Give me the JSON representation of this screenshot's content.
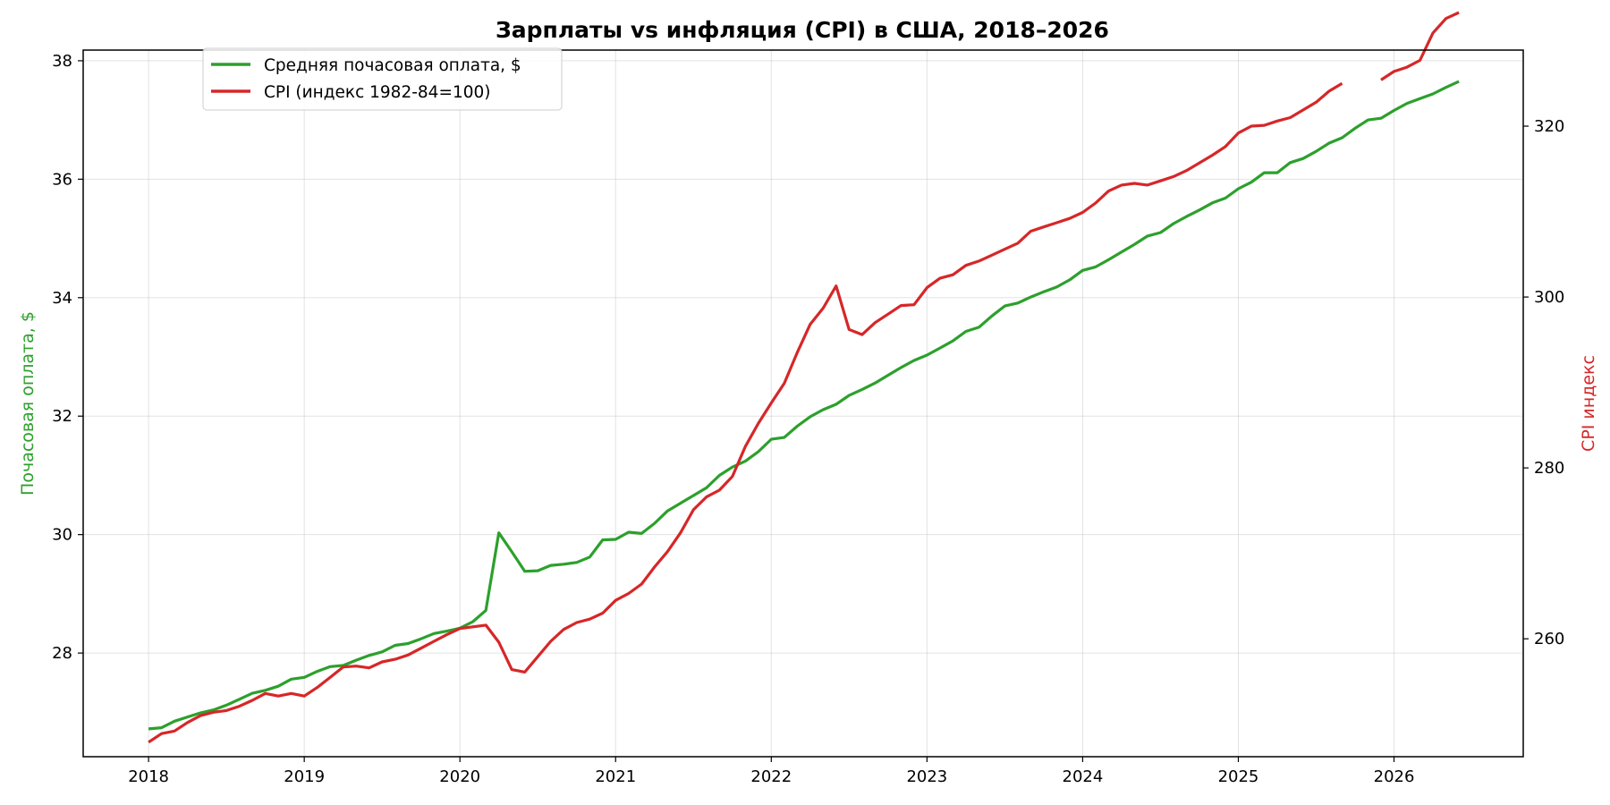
{
  "chart_data": {
    "type": "line",
    "title": "Зарплаты vs инфляция (CPI) в США, 2018–2026",
    "ylabel_left": "Почасовая оплата, $",
    "ylabel_right": "CPI индекс",
    "xlabel": "",
    "x_range": [
      2017.58,
      2026.83
    ],
    "ylim_left": [
      26.25,
      38.18
    ],
    "ylim_right": [
      246.2,
      328.9
    ],
    "x_ticks": [
      "2018",
      "2019",
      "2020",
      "2021",
      "2022",
      "2023",
      "2024",
      "2025",
      "2026"
    ],
    "y_ticks_left": [
      "28",
      "30",
      "32",
      "34",
      "36",
      "38"
    ],
    "y_ticks_right": [
      "260",
      "280",
      "300",
      "320"
    ],
    "grid": true,
    "legend_position": "upper-left",
    "x": [
      "2018-01",
      "2018-02",
      "2018-03",
      "2018-04",
      "2018-05",
      "2018-06",
      "2018-07",
      "2018-08",
      "2018-09",
      "2018-10",
      "2018-11",
      "2018-12",
      "2019-01",
      "2019-02",
      "2019-03",
      "2019-04",
      "2019-05",
      "2019-06",
      "2019-07",
      "2019-08",
      "2019-09",
      "2019-10",
      "2019-11",
      "2019-12",
      "2020-01",
      "2020-02",
      "2020-03",
      "2020-04",
      "2020-05",
      "2020-06",
      "2020-07",
      "2020-08",
      "2020-09",
      "2020-10",
      "2020-11",
      "2020-12",
      "2021-01",
      "2021-02",
      "2021-03",
      "2021-04",
      "2021-05",
      "2021-06",
      "2021-07",
      "2021-08",
      "2021-09",
      "2021-10",
      "2021-11",
      "2021-12",
      "2022-01",
      "2022-02",
      "2022-03",
      "2022-04",
      "2022-05",
      "2022-06",
      "2022-07",
      "2022-08",
      "2022-09",
      "2022-10",
      "2022-11",
      "2022-12",
      "2023-01",
      "2023-02",
      "2023-03",
      "2023-04",
      "2023-05",
      "2023-06",
      "2023-07",
      "2023-08",
      "2023-09",
      "2023-10",
      "2023-11",
      "2023-12",
      "2024-01",
      "2024-02",
      "2024-03",
      "2024-04",
      "2024-05",
      "2024-06",
      "2024-07",
      "2024-08",
      "2024-09",
      "2024-10",
      "2024-11",
      "2024-12",
      "2025-01",
      "2025-02",
      "2025-03",
      "2025-04",
      "2025-05",
      "2025-06",
      "2025-07",
      "2025-08",
      "2025-09",
      "2025-10",
      "2025-11",
      "2025-12",
      "2026-01",
      "2026-02",
      "2026-03",
      "2026-04",
      "2026-05",
      "2026-06"
    ],
    "series": [
      {
        "name": "Средняя почасовая оплата, $",
        "axis": "left",
        "color": "#2ca02c",
        "values": [
          26.72,
          26.74,
          26.85,
          26.92,
          26.99,
          27.04,
          27.12,
          27.22,
          27.32,
          27.37,
          27.44,
          27.56,
          27.59,
          27.69,
          27.77,
          27.79,
          27.88,
          27.96,
          28.02,
          28.13,
          28.16,
          28.24,
          28.33,
          28.37,
          28.42,
          28.53,
          28.72,
          30.03,
          29.71,
          29.38,
          29.39,
          29.48,
          29.5,
          29.53,
          29.62,
          29.91,
          29.92,
          30.04,
          30.02,
          30.19,
          30.4,
          30.53,
          30.66,
          30.79,
          31.0,
          31.14,
          31.24,
          31.4,
          31.61,
          31.64,
          31.83,
          31.99,
          32.11,
          32.2,
          32.35,
          32.45,
          32.56,
          32.69,
          32.82,
          32.94,
          33.03,
          33.15,
          33.27,
          33.43,
          33.5,
          33.69,
          33.86,
          33.91,
          34.01,
          34.1,
          34.18,
          34.3,
          34.46,
          34.52,
          34.64,
          34.77,
          34.9,
          35.04,
          35.1,
          35.25,
          35.37,
          35.48,
          35.6,
          35.68,
          35.84,
          35.95,
          36.11,
          36.11,
          36.28,
          36.35,
          36.47,
          36.61,
          36.7,
          36.86,
          37.0,
          37.03,
          37.16,
          37.28,
          37.36,
          37.44,
          37.55,
          37.65
        ]
      },
      {
        "name": "CPI (индекс 1982-84=100)",
        "axis": "right",
        "color": "#d62728",
        "values": [
          247.9,
          248.9,
          249.2,
          250.2,
          251.0,
          251.4,
          251.6,
          252.1,
          252.8,
          253.6,
          253.3,
          253.6,
          253.3,
          254.3,
          255.5,
          256.7,
          256.8,
          256.6,
          257.3,
          257.6,
          258.1,
          258.9,
          259.7,
          260.5,
          261.2,
          261.4,
          261.6,
          259.6,
          256.4,
          256.1,
          257.9,
          259.7,
          261.1,
          261.9,
          262.3,
          263.0,
          264.5,
          265.3,
          266.4,
          268.4,
          270.2,
          272.4,
          275.1,
          276.6,
          277.4,
          279.0,
          282.5,
          285.2,
          287.6,
          289.9,
          293.5,
          296.8,
          298.7,
          301.3,
          296.2,
          295.6,
          297.0,
          298.0,
          299.0,
          299.1,
          301.1,
          302.2,
          302.6,
          303.7,
          304.2,
          304.9,
          305.6,
          306.3,
          307.7,
          308.2,
          308.7,
          309.2,
          309.9,
          311.0,
          312.4,
          313.1,
          313.3,
          313.1,
          313.6,
          314.1,
          314.8,
          315.7,
          316.6,
          317.6,
          319.2,
          320.0,
          320.1,
          320.6,
          321.0,
          321.9,
          322.8,
          324.1,
          325.0,
          null,
          null,
          325.4,
          326.4,
          326.9,
          327.7,
          330.9,
          332.6,
          333.3
        ]
      }
    ]
  }
}
